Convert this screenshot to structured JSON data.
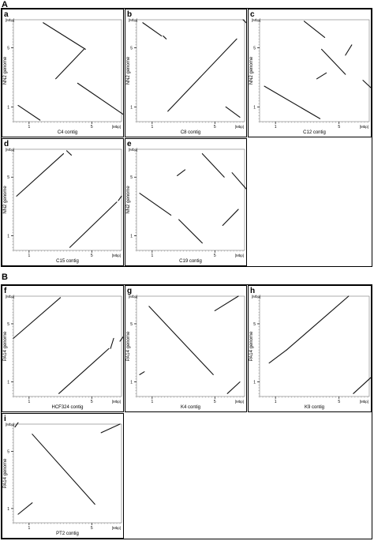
{
  "sections": [
    {
      "label": "A"
    },
    {
      "label": "B"
    }
  ],
  "chart_data": [
    {
      "id": "a",
      "type": "scatter",
      "panel_label": "a",
      "xlabel": "C4 contig",
      "ylabel": "NN2 genome",
      "x_ticks": [
        "1",
        "5"
      ],
      "y_ticks": [
        "1",
        "5"
      ],
      "x_unit": "[Mbp]",
      "y_unit": "[Mbp]",
      "xlim": [
        0,
        6.9
      ],
      "ylim": [
        0,
        6.9
      ],
      "segments": [
        [
          0.3,
          1.1,
          1.7,
          0.1
        ],
        [
          1.9,
          6.7,
          4.6,
          4.9
        ],
        [
          4.5,
          4.9,
          2.7,
          2.9
        ],
        [
          4.1,
          2.6,
          7.0,
          0.5
        ]
      ]
    },
    {
      "id": "b",
      "type": "scatter",
      "panel_label": "b",
      "xlabel": "C8 contig",
      "ylabel": "NN2 genome",
      "x_ticks": [
        "1",
        "5"
      ],
      "y_ticks": [
        "1",
        "5"
      ],
      "x_unit": "[Mbp]",
      "y_unit": "[Mbp]",
      "xlim": [
        0,
        6.9
      ],
      "ylim": [
        0,
        6.9
      ],
      "segments": [
        [
          0.4,
          6.7,
          1.6,
          5.8
        ],
        [
          1.7,
          5.8,
          1.9,
          5.6
        ],
        [
          2.0,
          0.7,
          6.4,
          5.6
        ],
        [
          5.7,
          1.0,
          6.6,
          0.3
        ],
        [
          6.8,
          6.9,
          7.0,
          6.7
        ]
      ]
    },
    {
      "id": "c",
      "type": "scatter",
      "panel_label": "c",
      "xlabel": "C12 contig",
      "ylabel": "NN2 genome",
      "x_ticks": [
        "1",
        "5"
      ],
      "y_ticks": [
        "1",
        "5"
      ],
      "x_unit": "[Mbp]",
      "y_unit": "[Mbp]",
      "xlim": [
        0,
        6.9
      ],
      "ylim": [
        0,
        6.9
      ],
      "segments": [
        [
          0.3,
          2.4,
          3.8,
          0.2
        ],
        [
          2.8,
          6.8,
          4.1,
          5.7
        ],
        [
          3.9,
          4.9,
          5.4,
          3.2
        ],
        [
          5.4,
          4.5,
          5.8,
          5.2
        ],
        [
          3.6,
          2.9,
          4.2,
          3.3
        ],
        [
          6.5,
          2.8,
          7.0,
          2.3
        ]
      ]
    },
    {
      "id": "d",
      "type": "scatter",
      "panel_label": "d",
      "xlabel": "C15 contig",
      "ylabel": "NN2 genome",
      "x_ticks": [
        "1",
        "5"
      ],
      "y_ticks": [
        "1",
        "5"
      ],
      "x_unit": "[Mbp]",
      "y_unit": "[Mbp]",
      "xlim": [
        0,
        6.9
      ],
      "ylim": [
        0,
        6.9
      ],
      "segments": [
        [
          0.2,
          3.7,
          3.2,
          6.6
        ],
        [
          3.4,
          6.8,
          3.7,
          6.5
        ],
        [
          3.6,
          0.2,
          6.6,
          3.3
        ],
        [
          6.7,
          3.4,
          6.9,
          3.7
        ]
      ]
    },
    {
      "id": "e",
      "type": "scatter",
      "panel_label": "e",
      "xlabel": "C19 contig",
      "ylabel": "NN2 genome",
      "x_ticks": [
        "1",
        "5"
      ],
      "y_ticks": [
        "1",
        "5"
      ],
      "x_unit": "[Mbp]",
      "y_unit": "[Mbp]",
      "xlim": [
        0,
        6.9
      ],
      "ylim": [
        0,
        6.9
      ],
      "segments": [
        [
          0.2,
          3.9,
          2.2,
          2.4
        ],
        [
          2.6,
          5.1,
          3.1,
          5.5
        ],
        [
          4.2,
          6.6,
          5.6,
          5.0
        ],
        [
          2.7,
          2.1,
          4.2,
          0.5
        ],
        [
          5.5,
          1.7,
          6.5,
          2.8
        ],
        [
          6.1,
          5.3,
          7.0,
          4.2
        ]
      ]
    },
    {
      "id": "f",
      "type": "scatter",
      "panel_label": "f",
      "xlabel": "HCF324 contig",
      "ylabel": "PA14 genome",
      "x_ticks": [
        "1",
        "5"
      ],
      "y_ticks": [
        "1",
        "5"
      ],
      "x_unit": "[Mbp]",
      "y_unit": "[Mbp]",
      "xlim": [
        0,
        6.9
      ],
      "ylim": [
        0,
        6.9
      ],
      "segments": [
        [
          0.0,
          4.0,
          3.0,
          6.8
        ],
        [
          2.9,
          0.2,
          6.1,
          3.3
        ],
        [
          6.2,
          3.3,
          6.4,
          4.0
        ],
        [
          6.8,
          3.8,
          7.0,
          4.1
        ]
      ]
    },
    {
      "id": "g",
      "type": "scatter",
      "panel_label": "g",
      "xlabel": "K4 contig",
      "ylabel": "PA14 genome",
      "x_ticks": [
        "1",
        "5"
      ],
      "y_ticks": [
        "1",
        "5"
      ],
      "x_unit": "[Mbp]",
      "y_unit": "[Mbp]",
      "xlim": [
        0,
        6.9
      ],
      "ylim": [
        0,
        6.9
      ],
      "segments": [
        [
          0.8,
          6.2,
          4.9,
          1.5
        ],
        [
          5.0,
          5.9,
          6.5,
          6.9
        ],
        [
          0.2,
          1.5,
          0.5,
          1.7
        ],
        [
          5.8,
          0.2,
          6.6,
          1.0
        ]
      ]
    },
    {
      "id": "h",
      "type": "scatter",
      "panel_label": "h",
      "xlabel": "K9 contig",
      "ylabel": "PA14 genome",
      "x_ticks": [
        "1",
        "5"
      ],
      "y_ticks": [
        "1",
        "5"
      ],
      "x_unit": "[Mbp]",
      "y_unit": "[Mbp]",
      "xlim": [
        0,
        6.9
      ],
      "ylim": [
        0,
        6.9
      ],
      "segments": [
        [
          0.6,
          2.3,
          1.7,
          3.2
        ],
        [
          1.7,
          3.2,
          5.6,
          6.9
        ],
        [
          5.9,
          0.2,
          7.0,
          1.3
        ]
      ]
    },
    {
      "id": "i",
      "type": "scatter",
      "panel_label": "i",
      "xlabel": "PT2 contig",
      "ylabel": "PA14 genome",
      "x_ticks": [
        "1",
        "5"
      ],
      "y_ticks": [
        "1",
        "5"
      ],
      "x_unit": "[Mbp]",
      "y_unit": "[Mbp]",
      "xlim": [
        0,
        6.9
      ],
      "ylim": [
        0,
        6.9
      ],
      "segments": [
        [
          0.3,
          0.6,
          1.2,
          1.4
        ],
        [
          1.2,
          6.2,
          5.2,
          1.3
        ],
        [
          5.6,
          6.3,
          6.8,
          6.9
        ],
        [
          0.1,
          6.7,
          0.3,
          7.0
        ]
      ]
    }
  ]
}
